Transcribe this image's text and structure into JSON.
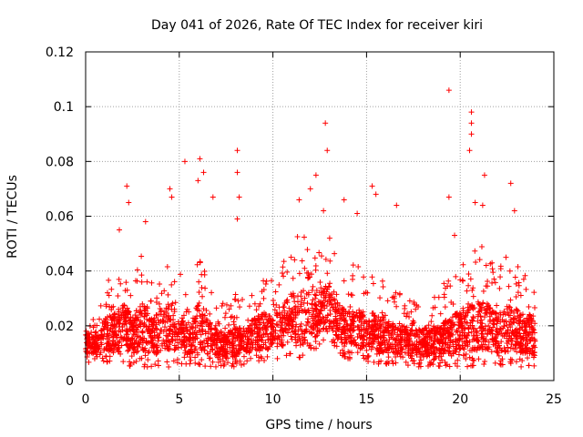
{
  "chart_data": {
    "type": "scatter",
    "title": "Day 041 of 2026, Rate Of TEC Index for receiver kiri",
    "xlabel": "GPS time / hours",
    "ylabel": "ROTI / TECUs",
    "xlim": [
      0,
      25
    ],
    "ylim": [
      0,
      0.12
    ],
    "x_ticks": [
      0,
      5,
      10,
      15,
      20,
      25
    ],
    "x_tick_labels": [
      "0",
      "5",
      "10",
      "15",
      "20",
      "25"
    ],
    "y_ticks": [
      0,
      0.02,
      0.04,
      0.06,
      0.08,
      0.1,
      0.12
    ],
    "y_tick_labels": [
      "0",
      "0.02",
      "0.04",
      "0.06",
      "0.08",
      "0.1",
      "0.12"
    ],
    "grid": true,
    "marker": "plus",
    "series": [
      {
        "name": "ROTI",
        "color": "#ff0000",
        "envelope_hours": [
          0,
          0.5,
          1,
          1.5,
          2,
          2.5,
          3,
          3.5,
          4,
          4.5,
          5,
          5.5,
          6,
          6.5,
          7,
          7.5,
          8,
          8.5,
          9,
          9.5,
          10,
          10.5,
          11,
          11.5,
          12,
          12.5,
          13,
          13.5,
          14,
          14.5,
          15,
          15.5,
          16,
          16.5,
          17,
          17.5,
          18,
          18.5,
          19,
          19.5,
          20,
          20.5,
          21,
          21.5,
          22,
          22.5,
          23,
          23.5,
          24
        ],
        "envelope_low": [
          0.006,
          0.008,
          0.007,
          0.006,
          0.006,
          0.005,
          0.005,
          0.005,
          0.005,
          0.005,
          0.006,
          0.006,
          0.006,
          0.005,
          0.005,
          0.005,
          0.005,
          0.006,
          0.007,
          0.007,
          0.008,
          0.008,
          0.008,
          0.008,
          0.009,
          0.012,
          0.013,
          0.01,
          0.008,
          0.007,
          0.006,
          0.006,
          0.006,
          0.006,
          0.006,
          0.005,
          0.005,
          0.005,
          0.005,
          0.005,
          0.005,
          0.005,
          0.005,
          0.005,
          0.005,
          0.005,
          0.005,
          0.005,
          0.005
        ],
        "envelope_high": [
          0.03,
          0.022,
          0.036,
          0.04,
          0.048,
          0.04,
          0.05,
          0.036,
          0.046,
          0.05,
          0.042,
          0.028,
          0.048,
          0.04,
          0.03,
          0.028,
          0.032,
          0.03,
          0.036,
          0.04,
          0.036,
          0.044,
          0.052,
          0.054,
          0.052,
          0.048,
          0.056,
          0.046,
          0.04,
          0.044,
          0.04,
          0.042,
          0.036,
          0.034,
          0.032,
          0.03,
          0.032,
          0.03,
          0.034,
          0.04,
          0.042,
          0.046,
          0.05,
          0.048,
          0.04,
          0.046,
          0.044,
          0.04,
          0.036
        ],
        "peaks": [
          {
            "x": 2.2,
            "y": 0.071
          },
          {
            "x": 2.3,
            "y": 0.065
          },
          {
            "x": 1.8,
            "y": 0.055
          },
          {
            "x": 3.2,
            "y": 0.058
          },
          {
            "x": 4.5,
            "y": 0.07
          },
          {
            "x": 4.6,
            "y": 0.067
          },
          {
            "x": 5.3,
            "y": 0.08
          },
          {
            "x": 6.1,
            "y": 0.081
          },
          {
            "x": 6.0,
            "y": 0.073
          },
          {
            "x": 6.3,
            "y": 0.076
          },
          {
            "x": 6.8,
            "y": 0.067
          },
          {
            "x": 8.1,
            "y": 0.084
          },
          {
            "x": 8.1,
            "y": 0.076
          },
          {
            "x": 8.2,
            "y": 0.067
          },
          {
            "x": 8.1,
            "y": 0.059
          },
          {
            "x": 11.4,
            "y": 0.066
          },
          {
            "x": 12.0,
            "y": 0.07
          },
          {
            "x": 12.3,
            "y": 0.075
          },
          {
            "x": 12.8,
            "y": 0.094
          },
          {
            "x": 12.9,
            "y": 0.084
          },
          {
            "x": 12.7,
            "y": 0.062
          },
          {
            "x": 13.8,
            "y": 0.066
          },
          {
            "x": 14.5,
            "y": 0.061
          },
          {
            "x": 15.3,
            "y": 0.071
          },
          {
            "x": 15.5,
            "y": 0.068
          },
          {
            "x": 16.6,
            "y": 0.064
          },
          {
            "x": 19.4,
            "y": 0.106
          },
          {
            "x": 19.4,
            "y": 0.067
          },
          {
            "x": 19.7,
            "y": 0.053
          },
          {
            "x": 20.6,
            "y": 0.098
          },
          {
            "x": 20.6,
            "y": 0.094
          },
          {
            "x": 20.6,
            "y": 0.09
          },
          {
            "x": 20.5,
            "y": 0.084
          },
          {
            "x": 20.8,
            "y": 0.065
          },
          {
            "x": 21.3,
            "y": 0.075
          },
          {
            "x": 21.2,
            "y": 0.064
          },
          {
            "x": 22.7,
            "y": 0.072
          },
          {
            "x": 22.9,
            "y": 0.062
          }
        ]
      }
    ]
  }
}
